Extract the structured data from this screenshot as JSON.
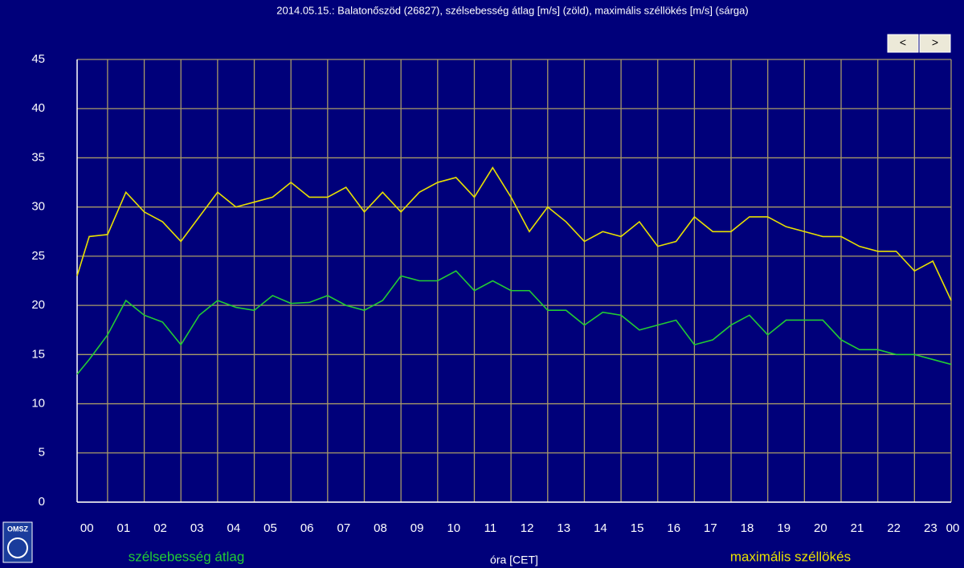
{
  "chart_data": {
    "type": "line",
    "title": "2014.05.15.: Balatonőszöd  (26827), szélsebesség átlag [m/s] (zöld), maximális széllökés [m/s] (sárga)",
    "x_label": "óra [CET]",
    "x": [
      0.17,
      0.5,
      1.0,
      1.5,
      2.0,
      2.5,
      3.0,
      3.5,
      4.0,
      4.5,
      5.0,
      5.5,
      6.0,
      6.5,
      7.0,
      7.5,
      8.0,
      8.5,
      9.0,
      9.5,
      10.0,
      10.5,
      11.0,
      11.5,
      12.0,
      12.5,
      13.0,
      13.5,
      14.0,
      14.5,
      15.0,
      15.5,
      16.0,
      16.5,
      17.0,
      17.5,
      18.0,
      18.5,
      19.0,
      19.5,
      20.0,
      20.5,
      21.0,
      21.5,
      22.0,
      22.5,
      23.0,
      23.5,
      24.0
    ],
    "series": [
      {
        "name": "szélsebesség átlag",
        "color": "#22cc33",
        "values": [
          13,
          14.5,
          17,
          20.5,
          19,
          18.3,
          16,
          19,
          20.5,
          19.8,
          19.5,
          21,
          20.2,
          20.3,
          21,
          20,
          19.5,
          20.5,
          23,
          22.5,
          22.5,
          23.5,
          21.5,
          22.5,
          21.5,
          21.5,
          19.5,
          19.5,
          18,
          19.3,
          19,
          17.5,
          18,
          18.5,
          16,
          16.5,
          18,
          19,
          17,
          18.5,
          18.5,
          18.5,
          16.5,
          15.5,
          15.5,
          15,
          15,
          14.5,
          14
        ]
      },
      {
        "name": "maximális széllökés",
        "color": "#e8e000",
        "values": [
          23,
          27,
          27.2,
          31.5,
          29.5,
          28.5,
          26.5,
          29,
          31.5,
          30,
          30.5,
          31,
          32.5,
          31,
          31,
          32,
          29.5,
          31.5,
          29.5,
          31.5,
          32.5,
          33,
          31,
          34,
          31,
          27.5,
          30,
          28.5,
          26.5,
          27.5,
          27,
          28.5,
          26,
          26.5,
          29,
          27.5,
          27.5,
          29,
          29,
          28,
          27.5,
          27,
          27,
          26,
          25.5,
          25.5,
          23.5,
          24.5,
          20.5
        ]
      }
    ],
    "xlim": [
      0.17,
      24
    ],
    "xticks": [
      {
        "value": 0,
        "label": "00"
      },
      {
        "value": 1,
        "label": "01"
      },
      {
        "value": 2,
        "label": "02"
      },
      {
        "value": 3,
        "label": "03"
      },
      {
        "value": 4,
        "label": "04"
      },
      {
        "value": 5,
        "label": "05"
      },
      {
        "value": 6,
        "label": "06"
      },
      {
        "value": 7,
        "label": "07"
      },
      {
        "value": 8,
        "label": "08"
      },
      {
        "value": 9,
        "label": "09"
      },
      10,
      11,
      12,
      13,
      14,
      15,
      16,
      17,
      18,
      19,
      20,
      21,
      22,
      23,
      {
        "value": 24,
        "label": "00"
      }
    ],
    "ylim": [
      0,
      45
    ],
    "yticks": [
      0,
      5,
      10,
      15,
      20,
      25,
      30,
      35,
      40,
      45
    ],
    "grid": true
  },
  "nav_buttons": [
    "<",
    ">"
  ],
  "logo": "OMSZ"
}
